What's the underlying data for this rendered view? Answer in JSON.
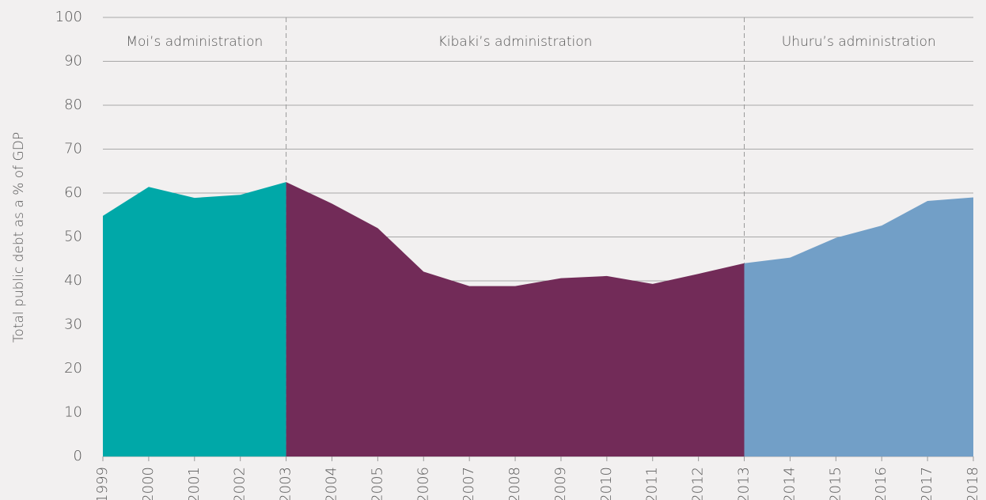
{
  "chart_data": {
    "type": "area",
    "y_label": "Total public debt as a % of GDP",
    "x": [
      1999,
      2000,
      2001,
      2002,
      2003,
      2004,
      2005,
      2006,
      2007,
      2008,
      2009,
      2010,
      2011,
      2012,
      2013,
      2014,
      2015,
      2016,
      2017,
      2018
    ],
    "series": [
      {
        "name": "Moi’s administration",
        "color": "#00a8a8",
        "values": [
          54.8,
          61.4,
          58.9,
          59.6,
          62.5,
          null,
          null,
          null,
          null,
          null,
          null,
          null,
          null,
          null,
          null,
          null,
          null,
          null,
          null,
          null
        ]
      },
      {
        "name": "Kibaki’s administration",
        "color": "#722b58",
        "values": [
          null,
          null,
          null,
          null,
          62.5,
          57.6,
          52.0,
          42.1,
          38.8,
          38.8,
          40.6,
          41.1,
          39.3,
          41.6,
          44.0,
          null,
          null,
          null,
          null,
          null
        ]
      },
      {
        "name": "Uhuru’s administration",
        "color": "#729fc7",
        "values": [
          null,
          null,
          null,
          null,
          null,
          null,
          null,
          null,
          null,
          null,
          null,
          null,
          null,
          null,
          44.0,
          45.3,
          49.8,
          52.6,
          58.2,
          59.0
        ]
      }
    ],
    "xlim": [
      1999,
      2018
    ],
    "ylim": [
      0,
      100
    ],
    "yticks": [
      0,
      10,
      20,
      30,
      40,
      50,
      60,
      70,
      80,
      90,
      100
    ],
    "grid": true
  }
}
